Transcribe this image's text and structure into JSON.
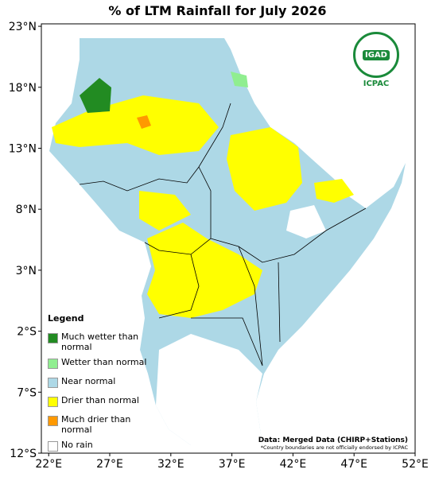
{
  "title": "% of LTM Rainfall for July 2026",
  "map": {
    "xlim": [
      21.4,
      52
    ],
    "ylim": [
      -12,
      23.2
    ],
    "xticks": [
      {
        "value": 22,
        "label": "22°E"
      },
      {
        "value": 27,
        "label": "27°E"
      },
      {
        "value": 32,
        "label": "32°E"
      },
      {
        "value": 37,
        "label": "37°E"
      },
      {
        "value": 42,
        "label": "42°E"
      },
      {
        "value": 47,
        "label": "47°E"
      },
      {
        "value": 52,
        "label": "52°E"
      }
    ],
    "yticks": [
      {
        "value": 23,
        "label": "23°N"
      },
      {
        "value": 18,
        "label": "18°N"
      },
      {
        "value": 13,
        "label": "13°N"
      },
      {
        "value": 8,
        "label": "8°N"
      },
      {
        "value": 3,
        "label": "3°N"
      },
      {
        "value": -2,
        "label": "2°S"
      },
      {
        "value": -7,
        "label": "7°S"
      },
      {
        "value": -12,
        "label": "12°S"
      }
    ]
  },
  "logo": {
    "top": "IGAD",
    "bottom": "ICPAC"
  },
  "legend": {
    "title": "Legend",
    "items": [
      {
        "label": "Much wetter than normal",
        "color": "#228b22"
      },
      {
        "label": "Wetter than normal",
        "color": "#90ee90"
      },
      {
        "label": "Near normal",
        "color": "#add8e6"
      },
      {
        "label": "Drier than normal",
        "color": "#ffff00"
      },
      {
        "label": "Much drier than normal",
        "color": "#ff9900"
      },
      {
        "label": "No rain",
        "color": "#ffffff"
      }
    ]
  },
  "source": "Data: Merged Data (CHIRP+Stations)",
  "note": "*Country boundaries are not officially endorsed by ICPAC"
}
